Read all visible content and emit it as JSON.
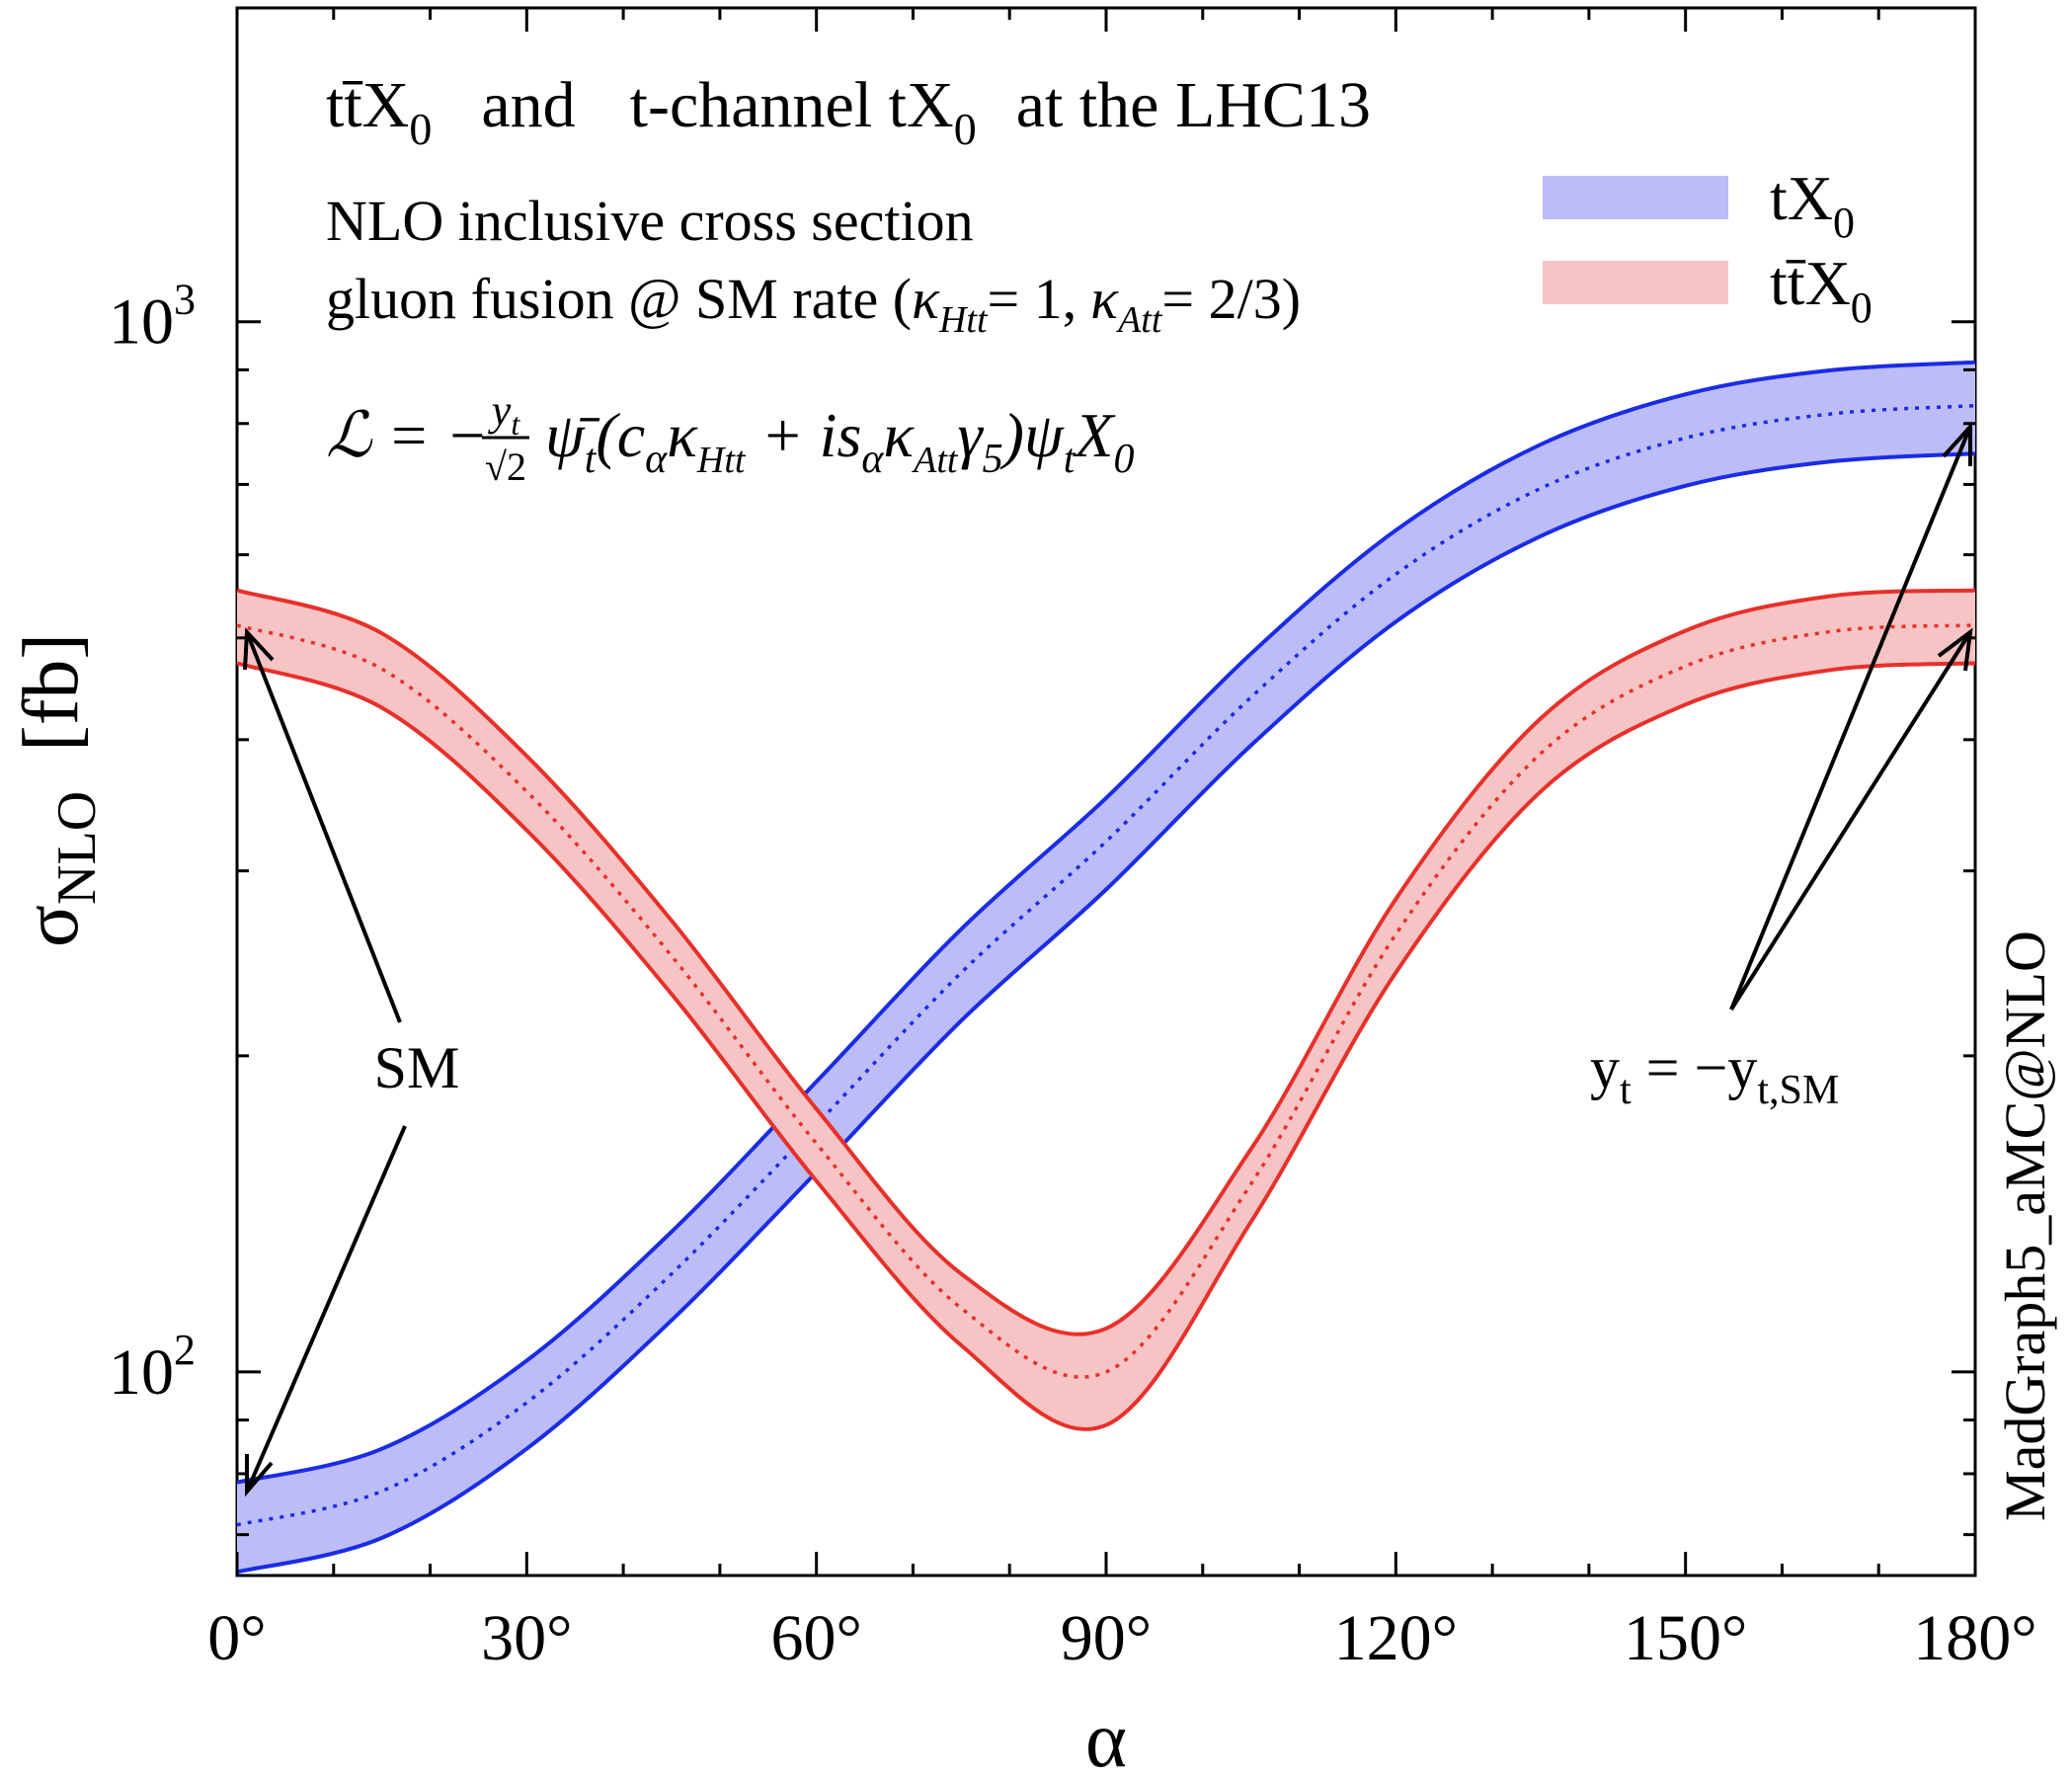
{
  "chart_data": {
    "type": "area",
    "title": "tt̄X₀ and t-channel tX₀ at the LHC13",
    "title_parts": {
      "a": "tt̄X",
      "a_sub": "0",
      "b": "and",
      "c": "t-channel tX",
      "c_sub": "0",
      "d": "at the LHC13"
    },
    "subtitle_lines": [
      "NLO inclusive cross section",
      "gluon fusion @ SM rate ("
    ],
    "kappa_text": {
      "kh": "κ",
      "kh_sub": "Htt",
      "kh_val": "= 1,",
      "ka": "κ",
      "ka_sub": "Att",
      "ka_val": "= 2/3)"
    },
    "lagrangian": {
      "L": "ℒ = −",
      "num": "y",
      "num_sub": "t",
      "den": "√2",
      "rest": "ψ̄",
      "rest_sub": "t",
      "paren_open": "(c",
      "c_sub": "α",
      "k1": "κ",
      "k1_sub": "Htt",
      "plus": " + is",
      "s_sub": "α",
      "k2": "κ",
      "k2_sub": "Att",
      "g": "γ",
      "g_sub": "5",
      "paren_close": ")ψ",
      "psi_sub": "t",
      "X": "X",
      "X_sub": "0"
    },
    "xlabel": "α",
    "ylabel": "σ",
    "ylabel_sub": "NLO",
    "ylabel_unit": "[fb]",
    "side_label": "MadGraph5_aMC@NLO",
    "x_ticks": [
      "0°",
      "30°",
      "60°",
      "90°",
      "120°",
      "150°",
      "180°"
    ],
    "y_ticks": [
      {
        "base": "10",
        "exp": "2"
      },
      {
        "base": "10",
        "exp": "3"
      }
    ],
    "xlim": [
      0,
      180
    ],
    "ylim": [
      64,
      1990
    ],
    "yscale": "log",
    "legend_position": "top-right",
    "annotations": {
      "sm": "SM",
      "yt": "y",
      "yt_sub": "t",
      "yt_eq": " = −y",
      "yt_sub2": "t,SM"
    },
    "series": [
      {
        "name": "tX",
        "name_sub": "0",
        "color": "#1a2ce6",
        "fill": "#bcbcf6",
        "x": [
          0,
          15,
          30,
          45,
          60,
          75,
          90,
          105,
          120,
          135,
          150,
          165,
          180
        ],
        "center": [
          71.5,
          77.0,
          93.5,
          124,
          172,
          240,
          320,
          439,
          575,
          694,
          775,
          817,
          832
        ],
        "low": [
          64.5,
          69.5,
          84.5,
          112,
          155,
          216,
          288,
          395,
          518,
          625,
          698,
          736,
          749
        ],
        "high": [
          78.5,
          84.5,
          102.5,
          136,
          189,
          264,
          352,
          483,
          633,
          764,
          853,
          899,
          915
        ]
      },
      {
        "name": "tt̄X",
        "name_sub": "0",
        "color": "#e8302a",
        "fill": "#f6c4c4",
        "x": [
          0,
          15,
          30,
          45,
          60,
          75,
          90,
          105,
          120,
          135,
          150,
          165,
          180
        ],
        "center": [
          514,
          467,
          357,
          249,
          165,
          115,
          100,
          151,
          261,
          388,
          470,
          507,
          514
        ],
        "low": [
          473,
          429,
          328,
          229,
          152,
          106,
          89,
          139,
          240,
          357,
          432,
          466,
          473
        ],
        "high": [
          555,
          505,
          386,
          269,
          178,
          124,
          110,
          163,
          282,
          419,
          508,
          548,
          555
        ]
      }
    ]
  }
}
